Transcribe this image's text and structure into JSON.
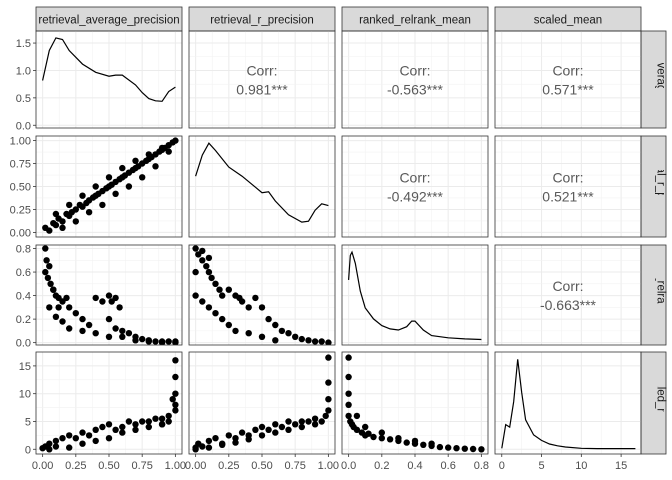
{
  "chart_data": {
    "type": "scatter-matrix",
    "variables": [
      "retrieval_average_precision",
      "retrieval_r_precision",
      "ranked_relrank_mean",
      "scaled_mean"
    ],
    "strip_labels": {
      "top": [
        "retrieval_average_precision",
        "retrieval_r_precision",
        "ranked_relrank_mean",
        "scaled_mean"
      ],
      "right": [
        "retrieval_average_precision",
        "retrieval_r_precision",
        "ranked_relrank_mean",
        "scaled_mean"
      ]
    },
    "axes": {
      "x": [
        {
          "ticks": [
            0.0,
            0.25,
            0.5,
            0.75,
            1.0
          ],
          "labels": [
            "0.00",
            "0.25",
            "0.50",
            "0.75",
            "1.00"
          ],
          "lim": [
            -0.05,
            1.05
          ]
        },
        {
          "ticks": [
            0.0,
            0.25,
            0.5,
            0.75,
            1.0
          ],
          "labels": [
            "0.00",
            "0.25",
            "0.50",
            "0.75",
            "1.00"
          ],
          "lim": [
            -0.05,
            1.05
          ]
        },
        {
          "ticks": [
            0.0,
            0.2,
            0.4,
            0.6,
            0.8
          ],
          "labels": [
            "0.0",
            "0.2",
            "0.4",
            "0.6",
            "0.8"
          ],
          "lim": [
            -0.04,
            0.84
          ]
        },
        {
          "ticks": [
            0,
            5,
            10,
            15
          ],
          "labels": [
            "0",
            "5",
            "10",
            "15"
          ],
          "lim": [
            -0.85,
            17.5
          ]
        }
      ],
      "y": [
        {
          "ticks": [
            0.0,
            0.5,
            1.0,
            1.5
          ],
          "labels": [
            "0.0",
            "0.5",
            "1.0",
            "1.5"
          ],
          "lim": [
            -0.05,
            1.72
          ]
        },
        {
          "ticks": [
            0.0,
            0.25,
            0.5,
            0.75,
            1.0
          ],
          "labels": [
            "0.00",
            "0.25",
            "0.50",
            "0.75",
            "1.00"
          ],
          "lim": [
            -0.05,
            1.05
          ]
        },
        {
          "ticks": [
            0.0,
            0.2,
            0.4,
            0.6,
            0.8
          ],
          "labels": [
            "0.0",
            "0.2",
            "0.4",
            "0.6",
            "0.8"
          ],
          "lim": [
            -0.02,
            0.83
          ]
        },
        {
          "ticks": [
            0,
            5,
            10,
            15
          ],
          "labels": [
            "0",
            "5",
            "10",
            "15"
          ],
          "lim": [
            -0.85,
            17.5
          ]
        }
      ]
    },
    "densities": [
      {
        "var": 0,
        "x": [
          0.0,
          0.05,
          0.1,
          0.15,
          0.2,
          0.3,
          0.4,
          0.5,
          0.55,
          0.6,
          0.7,
          0.75,
          0.8,
          0.85,
          0.9,
          0.95,
          1.0
        ],
        "y": [
          0.8,
          1.35,
          1.58,
          1.55,
          1.35,
          1.1,
          0.95,
          0.88,
          0.9,
          0.9,
          0.72,
          0.58,
          0.47,
          0.43,
          0.42,
          0.6,
          0.68
        ]
      },
      {
        "var": 1,
        "x": [
          0.0,
          0.05,
          0.1,
          0.15,
          0.25,
          0.35,
          0.45,
          0.5,
          0.55,
          0.6,
          0.7,
          0.8,
          0.85,
          0.9,
          0.95,
          1.0
        ],
        "y": [
          0.62,
          0.85,
          0.98,
          0.9,
          0.72,
          0.62,
          0.5,
          0.44,
          0.45,
          0.35,
          0.2,
          0.12,
          0.13,
          0.25,
          0.32,
          0.3
        ]
      },
      {
        "var": 2,
        "x": [
          0.0,
          0.01,
          0.02,
          0.04,
          0.07,
          0.1,
          0.15,
          0.2,
          0.25,
          0.3,
          0.35,
          0.38,
          0.4,
          0.45,
          0.5,
          0.6,
          0.7,
          0.8
        ],
        "y": [
          0.55,
          0.77,
          0.8,
          0.7,
          0.45,
          0.3,
          0.2,
          0.14,
          0.11,
          0.1,
          0.13,
          0.18,
          0.18,
          0.1,
          0.05,
          0.03,
          0.02,
          0.015
        ]
      },
      {
        "var": 3,
        "x": [
          0.0,
          0.5,
          1.0,
          1.5,
          2.0,
          2.5,
          3.0,
          4.0,
          5.0,
          6.0,
          7.0,
          8.0,
          10.0,
          12.0,
          15.0,
          16.8
        ],
        "y": [
          0.3,
          4.2,
          3.8,
          8.0,
          15.0,
          9.5,
          5.0,
          2.5,
          1.6,
          1.0,
          0.7,
          0.5,
          0.3,
          0.25,
          0.25,
          0.25
        ]
      }
    ],
    "correlations": [
      {
        "row": 0,
        "col": 1,
        "label": "Corr:",
        "value": "0.981***"
      },
      {
        "row": 0,
        "col": 2,
        "label": "Corr:",
        "value": "-0.563***"
      },
      {
        "row": 0,
        "col": 3,
        "label": "Corr:",
        "value": "0.571***"
      },
      {
        "row": 1,
        "col": 2,
        "label": "Corr:",
        "value": "-0.492***"
      },
      {
        "row": 1,
        "col": 3,
        "label": "Corr:",
        "value": "0.521***"
      },
      {
        "row": 2,
        "col": 3,
        "label": "Corr:",
        "value": "-0.663***"
      }
    ],
    "scatter_panels": [
      {
        "row": 1,
        "col": 0,
        "x": [
          0.02,
          0.05,
          0.08,
          0.1,
          0.12,
          0.15,
          0.18,
          0.2,
          0.22,
          0.25,
          0.28,
          0.3,
          0.33,
          0.35,
          0.38,
          0.4,
          0.42,
          0.45,
          0.48,
          0.5,
          0.52,
          0.55,
          0.58,
          0.6,
          0.62,
          0.65,
          0.68,
          0.7,
          0.72,
          0.75,
          0.78,
          0.8,
          0.82,
          0.85,
          0.88,
          0.9,
          0.92,
          0.95,
          0.98,
          1.0,
          0.1,
          0.2,
          0.3,
          0.4,
          0.5,
          0.6,
          0.7,
          0.8,
          0.9,
          0.15,
          0.25,
          0.35,
          0.45,
          0.55,
          0.65,
          0.75,
          0.85,
          0.95
        ],
        "y": [
          0.05,
          0.02,
          0.1,
          0.08,
          0.15,
          0.12,
          0.2,
          0.18,
          0.22,
          0.25,
          0.3,
          0.28,
          0.32,
          0.35,
          0.38,
          0.4,
          0.42,
          0.45,
          0.48,
          0.5,
          0.52,
          0.55,
          0.58,
          0.6,
          0.62,
          0.65,
          0.68,
          0.7,
          0.72,
          0.75,
          0.78,
          0.8,
          0.82,
          0.85,
          0.88,
          0.9,
          0.92,
          0.95,
          0.98,
          1.0,
          0.2,
          0.3,
          0.4,
          0.5,
          0.6,
          0.7,
          0.78,
          0.85,
          0.92,
          0.05,
          0.12,
          0.22,
          0.3,
          0.42,
          0.5,
          0.6,
          0.72,
          0.88
        ]
      },
      {
        "row": 2,
        "col": 0,
        "x": [
          0.02,
          0.03,
          0.05,
          0.04,
          0.06,
          0.08,
          0.1,
          0.12,
          0.15,
          0.18,
          0.2,
          0.25,
          0.3,
          0.35,
          0.4,
          0.45,
          0.5,
          0.55,
          0.6,
          0.65,
          0.7,
          0.75,
          0.8,
          0.85,
          0.9,
          0.95,
          1.0,
          0.05,
          0.1,
          0.15,
          0.2,
          0.3,
          0.4,
          0.5,
          0.55,
          0.6,
          0.7,
          0.8,
          0.9,
          1.0,
          0.02,
          0.08,
          0.12,
          0.5,
          0.52,
          0.58
        ],
        "y": [
          0.8,
          0.7,
          0.65,
          0.55,
          0.5,
          0.45,
          0.4,
          0.38,
          0.35,
          0.38,
          0.3,
          0.25,
          0.2,
          0.15,
          0.38,
          0.35,
          0.2,
          0.38,
          0.1,
          0.08,
          0.05,
          0.03,
          0.02,
          0.01,
          0.01,
          0.01,
          0.0,
          0.3,
          0.22,
          0.18,
          0.12,
          0.1,
          0.08,
          0.05,
          0.12,
          0.05,
          0.02,
          0.01,
          0.0,
          0.01,
          0.6,
          0.45,
          0.3,
          0.4,
          0.35,
          0.3
        ]
      },
      {
        "row": 2,
        "col": 1,
        "x": [
          0.0,
          0.0,
          0.02,
          0.05,
          0.08,
          0.1,
          0.12,
          0.15,
          0.18,
          0.2,
          0.25,
          0.3,
          0.33,
          0.35,
          0.4,
          0.45,
          0.5,
          0.55,
          0.6,
          0.65,
          0.7,
          0.75,
          0.8,
          0.85,
          0.9,
          0.95,
          1.0,
          0.0,
          0.05,
          0.1,
          0.15,
          0.2,
          0.25,
          0.3,
          0.4,
          0.5,
          0.6,
          0.05,
          0.1
        ],
        "y": [
          0.8,
          0.6,
          0.75,
          0.7,
          0.65,
          0.6,
          0.55,
          0.5,
          0.45,
          0.4,
          0.45,
          0.4,
          0.38,
          0.35,
          0.3,
          0.38,
          0.3,
          0.2,
          0.15,
          0.1,
          0.08,
          0.05,
          0.03,
          0.02,
          0.01,
          0.01,
          0.0,
          0.4,
          0.35,
          0.3,
          0.25,
          0.2,
          0.15,
          0.1,
          0.08,
          0.05,
          0.02,
          0.78,
          0.72
        ]
      },
      {
        "row": 3,
        "col": 0,
        "x": [
          0.0,
          0.02,
          0.05,
          0.1,
          0.15,
          0.2,
          0.25,
          0.3,
          0.35,
          0.4,
          0.45,
          0.5,
          0.55,
          0.6,
          0.65,
          0.7,
          0.75,
          0.8,
          0.85,
          0.9,
          0.95,
          1.0,
          1.0,
          1.0,
          1.0,
          1.0,
          0.95,
          0.9,
          0.98,
          0.05,
          0.1,
          0.2,
          0.3,
          0.4,
          0.5,
          0.6,
          0.7,
          0.8,
          0.9
        ],
        "y": [
          0.2,
          0.5,
          1.0,
          1.5,
          2.0,
          2.5,
          2.0,
          3.0,
          2.5,
          3.5,
          4.0,
          4.5,
          3.5,
          4.0,
          5.0,
          4.5,
          5.0,
          5.0,
          5.5,
          4.5,
          5.0,
          16.0,
          13.0,
          10.0,
          8.0,
          7.0,
          6.0,
          5.5,
          9.0,
          0.0,
          0.5,
          0.3,
          1.0,
          1.5,
          2.0,
          3.0,
          3.5,
          4.0,
          4.5
        ]
      },
      {
        "row": 3,
        "col": 1,
        "x": [
          0.0,
          0.02,
          0.05,
          0.1,
          0.15,
          0.2,
          0.25,
          0.3,
          0.35,
          0.4,
          0.45,
          0.5,
          0.55,
          0.6,
          0.65,
          0.7,
          0.75,
          0.8,
          0.85,
          0.9,
          0.95,
          1.0,
          1.0,
          1.0,
          1.0,
          0.98,
          0.0,
          0.1,
          0.2,
          0.3,
          0.4,
          0.5,
          0.6,
          0.7,
          0.8,
          0.9
        ],
        "y": [
          0.3,
          1.0,
          0.5,
          1.5,
          2.0,
          1.0,
          2.5,
          2.0,
          3.0,
          2.5,
          3.5,
          4.0,
          3.5,
          4.5,
          4.0,
          5.0,
          4.5,
          5.0,
          5.0,
          5.5,
          5.0,
          16.5,
          12.0,
          9.0,
          7.0,
          6.0,
          0.0,
          0.3,
          0.8,
          1.2,
          1.8,
          2.5,
          3.0,
          3.5,
          4.0,
          4.5
        ]
      },
      {
        "row": 3,
        "col": 2,
        "x": [
          0.0,
          0.0,
          0.0,
          0.0,
          0.0,
          0.01,
          0.02,
          0.03,
          0.05,
          0.08,
          0.1,
          0.12,
          0.15,
          0.2,
          0.25,
          0.3,
          0.35,
          0.4,
          0.45,
          0.5,
          0.55,
          0.6,
          0.65,
          0.7,
          0.75,
          0.8,
          0.05,
          0.1,
          0.2,
          0.3,
          0.4,
          0.5
        ],
        "y": [
          16.5,
          13.0,
          10.0,
          8.0,
          6.0,
          5.0,
          4.5,
          4.0,
          3.5,
          3.0,
          2.5,
          2.8,
          2.2,
          2.0,
          1.8,
          1.5,
          1.2,
          1.0,
          0.8,
          0.6,
          0.4,
          0.3,
          0.2,
          0.1,
          0.05,
          0.0,
          6.0,
          4.0,
          3.0,
          2.0,
          1.5,
          1.0
        ]
      }
    ]
  }
}
